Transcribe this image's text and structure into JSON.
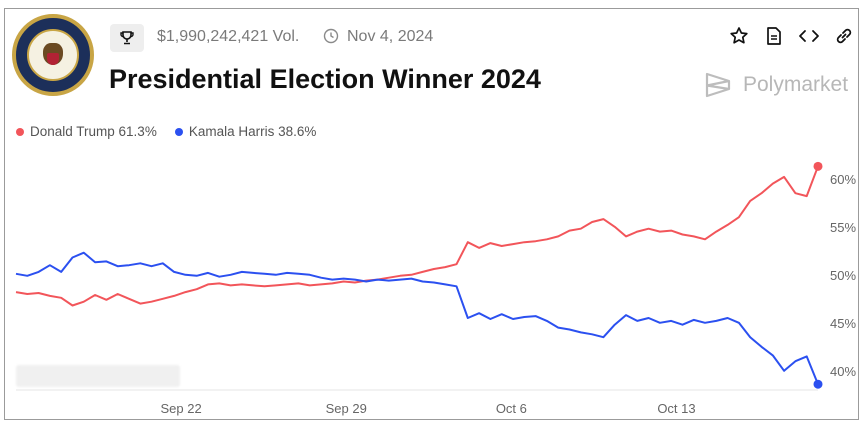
{
  "header": {
    "volume": "$1,990,242,421 Vol.",
    "date": "Nov 4, 2024",
    "title": "Presidential Election Winner 2024",
    "brand": "Polymarket",
    "icons": [
      "trophy-icon",
      "clock-icon",
      "star-icon",
      "document-icon",
      "embed-code-icon",
      "link-icon"
    ]
  },
  "legend": [
    {
      "label": "Donald Trump 61.3%",
      "color": "#f2555a"
    },
    {
      "label": "Kamala Harris 38.6%",
      "color": "#2b50f0"
    }
  ],
  "chart_data": {
    "type": "line",
    "title": "Presidential Election Winner 2024",
    "x_ticks": [
      "Sep 22",
      "Sep 29",
      "Oct 6",
      "Oct 13"
    ],
    "y_ticks": [
      "40%",
      "45%",
      "50%",
      "55%",
      "60%"
    ],
    "ylim": [
      38,
      63
    ],
    "legend": "top-left",
    "grid": false,
    "series": [
      {
        "name": "Donald Trump",
        "color": "#f2555a",
        "values": [
          48.2,
          48.0,
          48.1,
          47.8,
          47.6,
          46.8,
          47.2,
          47.9,
          47.4,
          48.0,
          47.5,
          47.0,
          47.2,
          47.5,
          47.8,
          48.2,
          48.5,
          49.0,
          49.1,
          48.9,
          49.0,
          48.9,
          48.8,
          48.9,
          49.0,
          49.1,
          48.9,
          49.0,
          49.1,
          49.3,
          49.2,
          49.4,
          49.5,
          49.7,
          49.9,
          50.0,
          50.3,
          50.6,
          50.8,
          51.1,
          53.4,
          52.8,
          53.3,
          53.0,
          53.2,
          53.4,
          53.5,
          53.7,
          54.0,
          54.6,
          54.8,
          55.5,
          55.8,
          55.0,
          54.0,
          54.5,
          54.8,
          54.5,
          54.6,
          54.2,
          54.0,
          53.7,
          54.5,
          55.2,
          56.0,
          57.7,
          58.5,
          59.5,
          60.2,
          58.5,
          58.2,
          61.3
        ]
      },
      {
        "name": "Kamala Harris",
        "color": "#2b50f0",
        "values": [
          50.1,
          49.9,
          50.3,
          51.0,
          50.3,
          51.8,
          52.3,
          51.3,
          51.4,
          50.9,
          51.0,
          51.2,
          50.9,
          51.2,
          50.3,
          50.0,
          49.9,
          50.2,
          49.8,
          50.0,
          50.3,
          50.2,
          50.1,
          50.0,
          50.2,
          50.1,
          50.0,
          49.7,
          49.5,
          49.6,
          49.5,
          49.3,
          49.5,
          49.4,
          49.5,
          49.6,
          49.3,
          49.2,
          49.0,
          48.8,
          45.5,
          46.0,
          45.4,
          45.9,
          45.4,
          45.6,
          45.7,
          45.2,
          44.5,
          44.3,
          44.0,
          43.8,
          43.5,
          44.8,
          45.8,
          45.2,
          45.5,
          45.0,
          45.2,
          44.8,
          45.3,
          45.0,
          45.2,
          45.5,
          45.0,
          43.5,
          42.5,
          41.6,
          40.0,
          41.0,
          41.5,
          38.6
        ]
      }
    ]
  }
}
